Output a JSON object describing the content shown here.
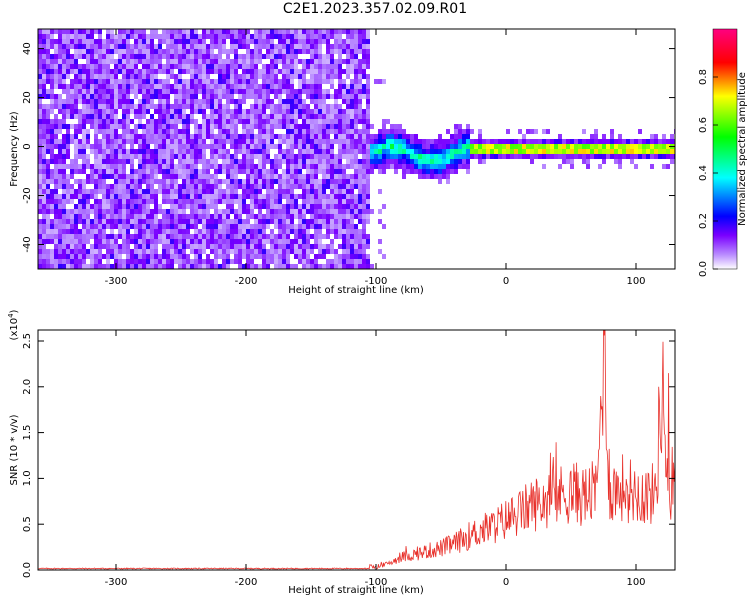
{
  "title": "C2E1.2023.357.02.09.R01",
  "chart_data": [
    {
      "type": "heatmap",
      "xlabel": "Height of straight line (km)",
      "ylabel": "Frequency (Hz)",
      "xlim": [
        -360,
        130
      ],
      "ylim": [
        -50,
        48
      ],
      "x_ticks": [
        -300,
        -200,
        -100,
        0,
        100
      ],
      "y_ticks": [
        -40,
        -20,
        0,
        20,
        40
      ],
      "grid": false,
      "colorbar": {
        "label": "Normalized spectral amplitude",
        "range": [
          0.0,
          1.0
        ],
        "ticks": [
          0.0,
          0.2,
          0.4,
          0.6,
          0.8
        ],
        "colors": [
          "#ffffff",
          "#7a00ff",
          "#0000ff",
          "#00ffff",
          "#00ff00",
          "#ffff00",
          "#ff0000",
          "#ff0080"
        ]
      },
      "regions": [
        {
          "x_range": [
            -360,
            -105
          ],
          "y_range": [
            -50,
            48
          ],
          "amplitude": "0.0-0.25 (broadband noise)"
        },
        {
          "x_range": [
            -105,
            -30
          ],
          "y_range": [
            -8,
            12
          ],
          "amplitude": "0.3-0.6"
        },
        {
          "x_range": [
            -30,
            130
          ],
          "y_range": [
            -3,
            3
          ],
          "amplitude": "0.6-1.0 (signal near 0 Hz)"
        }
      ]
    },
    {
      "type": "line",
      "xlabel": "Height of straight line (km)",
      "ylabel": "SNR (10 * v/v)",
      "y_multiplier": "(x10",
      "y_exponent": "4",
      "y_multiplier_close": ")",
      "xlim": [
        -360,
        130
      ],
      "ylim": [
        0,
        2.62
      ],
      "x_ticks": [
        -300,
        -200,
        -100,
        0,
        100
      ],
      "y_ticks": [
        "0.0",
        "0.5",
        "1.0",
        "1.5",
        "2.0",
        "2.5"
      ],
      "grid": false,
      "series": [
        {
          "color": "#e8302a",
          "x": [
            -360,
            -300,
            -200,
            -120,
            -100,
            -95,
            -90,
            -80,
            -70,
            -60,
            -50,
            -40,
            -30,
            -20,
            -10,
            0,
            10,
            20,
            30,
            40,
            50,
            60,
            70,
            75,
            80,
            90,
            100,
            110,
            115,
            120,
            125,
            130
          ],
          "y": [
            0.01,
            0.01,
            0.01,
            0.01,
            0.02,
            0.05,
            0.08,
            0.15,
            0.18,
            0.22,
            0.25,
            0.3,
            0.38,
            0.45,
            0.5,
            0.58,
            0.65,
            0.75,
            0.8,
            0.85,
            0.9,
            0.85,
            0.9,
            2.62,
            0.9,
            0.95,
            0.9,
            0.85,
            0.9,
            2.15,
            0.9,
            1.1
          ]
        }
      ]
    }
  ]
}
